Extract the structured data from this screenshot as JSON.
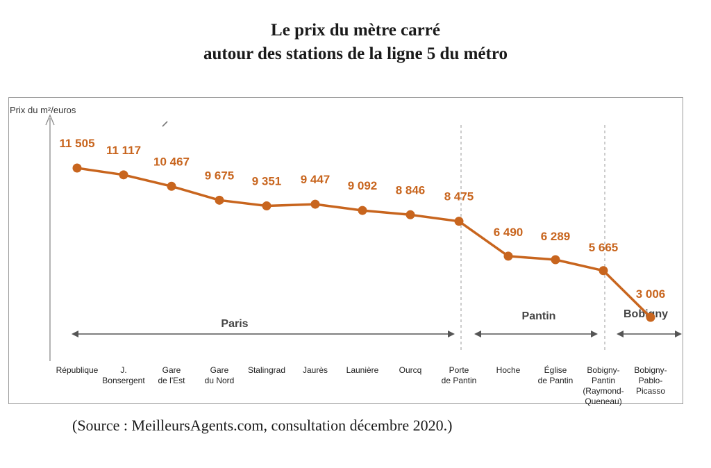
{
  "chart_data": {
    "type": "line",
    "title": "Le prix du mètre carré",
    "subtitle": "autour des stations de la ligne 5 du métro",
    "ylabel": "Prix du m²/euros",
    "xlabel": "",
    "ylim": [
      0,
      12500
    ],
    "grid": false,
    "line_color": "#c8651e",
    "categories": [
      [
        "République"
      ],
      [
        "J.",
        "Bonsergent"
      ],
      [
        "Gare",
        "de l'Est"
      ],
      [
        "Gare",
        "du Nord"
      ],
      [
        "Stalingrad"
      ],
      [
        "Jaurès"
      ],
      [
        "Launière"
      ],
      [
        "Ourcq"
      ],
      [
        "Porte",
        "de Pantin"
      ],
      [
        "Hoche"
      ],
      [
        "Église",
        "de Pantin"
      ],
      [
        "Bobigny-",
        "Pantin",
        "(Raymond-",
        "Queneau)"
      ],
      [
        "Bobigny-",
        "Pablo-",
        "Picasso"
      ]
    ],
    "values": [
      11505,
      11117,
      10467,
      9675,
      9351,
      9447,
      9092,
      8846,
      8475,
      6490,
      6289,
      5665,
      3006
    ],
    "value_labels": [
      "11 505",
      "11 117",
      "10 467",
      "9 675",
      "9 351",
      "9 447",
      "9 092",
      "8 846",
      "8 475",
      "6 490",
      "6 289",
      "5 665",
      "3 006"
    ],
    "zones": [
      {
        "label": "Paris"
      },
      {
        "label": "Pantin"
      },
      {
        "label": "Bobigny"
      }
    ]
  },
  "source": "(Source : MeilleursAgents.com, consultation décembre 2020.)"
}
